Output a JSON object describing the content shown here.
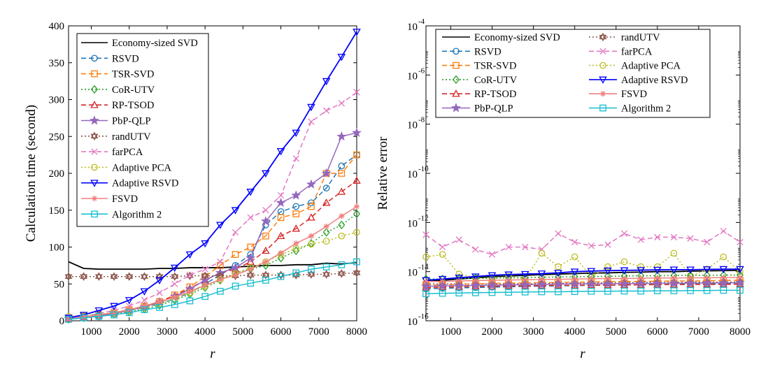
{
  "chart_data": [
    {
      "type": "line",
      "title": "",
      "xlabel": "r",
      "ylabel": "Calculation time (second)",
      "xlim": [
        400,
        8000
      ],
      "ylim": [
        0,
        400
      ],
      "yscale": "linear",
      "xticks": [
        1000,
        2000,
        3000,
        4000,
        5000,
        6000,
        7000,
        8000
      ],
      "xtick_labels": [
        "1000",
        "2000",
        "3000",
        "4000",
        "5000",
        "6000",
        "7000",
        "8000"
      ],
      "yticks": [
        0,
        50,
        100,
        150,
        200,
        250,
        300,
        350,
        400
      ],
      "ytick_labels": [
        "0",
        "50",
        "100",
        "150",
        "200",
        "250",
        "300",
        "350",
        "400"
      ],
      "legend_position": "top-left",
      "x": [
        400,
        800,
        1200,
        1600,
        2000,
        2400,
        2800,
        3200,
        3600,
        4000,
        4400,
        4800,
        5200,
        5600,
        6000,
        6400,
        6800,
        7200,
        7600,
        8000
      ],
      "series": [
        {
          "name": "Economy-sized SVD",
          "color": "#000000",
          "dash": "solid",
          "marker": "none",
          "values": [
            80,
            71,
            70,
            70,
            70,
            70,
            71,
            71,
            72,
            72,
            72,
            73,
            74,
            75,
            75,
            76,
            76,
            78,
            77,
            79
          ]
        },
        {
          "name": "RSVD",
          "color": "#1f77b4",
          "dash": "dashed",
          "marker": "circle",
          "values": [
            3,
            6,
            8,
            11,
            14,
            18,
            23,
            30,
            38,
            50,
            62,
            75,
            90,
            130,
            148,
            155,
            160,
            180,
            210,
            225
          ]
        },
        {
          "name": "TSR-SVD",
          "color": "#ff7f0e",
          "dash": "dashed",
          "marker": "square",
          "values": [
            3,
            6,
            8,
            11,
            15,
            20,
            26,
            35,
            46,
            60,
            75,
            90,
            100,
            115,
            140,
            145,
            155,
            200,
            200,
            225
          ]
        },
        {
          "name": "CoR-UTV",
          "color": "#2ca02c",
          "dash": "dotted",
          "marker": "diamond",
          "values": [
            2,
            4,
            6,
            9,
            12,
            16,
            21,
            28,
            36,
            45,
            55,
            65,
            70,
            75,
            85,
            95,
            105,
            120,
            130,
            145
          ]
        },
        {
          "name": "RP-TSOD",
          "color": "#d62728",
          "dash": "dashed",
          "marker": "triangle-up",
          "values": [
            3,
            5,
            8,
            11,
            15,
            20,
            26,
            34,
            44,
            55,
            65,
            70,
            80,
            95,
            115,
            125,
            140,
            160,
            175,
            190
          ]
        },
        {
          "name": "PbP-QLP",
          "color": "#9467bd",
          "dash": "solid",
          "marker": "star",
          "values": [
            3,
            5,
            7,
            10,
            14,
            19,
            25,
            33,
            43,
            55,
            65,
            72,
            85,
            135,
            160,
            170,
            185,
            200,
            250,
            255
          ]
        },
        {
          "name": "randUTV",
          "color": "#8c564b",
          "dash": "dotted",
          "marker": "hexagram",
          "values": [
            60,
            60,
            60,
            60,
            60,
            60,
            60,
            60,
            61,
            61,
            61,
            61,
            62,
            62,
            62,
            62,
            63,
            63,
            64,
            65
          ]
        },
        {
          "name": "farPCA",
          "color": "#e377c2",
          "dash": "dashed",
          "marker": "x",
          "values": [
            3,
            6,
            10,
            14,
            20,
            28,
            38,
            50,
            62,
            70,
            80,
            120,
            140,
            150,
            170,
            220,
            270,
            285,
            295,
            310
          ]
        },
        {
          "name": "Adaptive PCA",
          "color": "#bcbd22",
          "dash": "dotted",
          "marker": "circle",
          "values": [
            6,
            7,
            9,
            11,
            14,
            18,
            23,
            30,
            38,
            47,
            56,
            64,
            72,
            80,
            90,
            98,
            104,
            108,
            115,
            120
          ]
        },
        {
          "name": "Adaptive RSVD",
          "color": "#0000ff",
          "dash": "solid",
          "marker": "triangle-down",
          "values": [
            4,
            8,
            14,
            20,
            28,
            40,
            55,
            72,
            90,
            105,
            130,
            150,
            175,
            200,
            230,
            255,
            290,
            325,
            358,
            392
          ]
        },
        {
          "name": "FSVD",
          "color": "#f08080",
          "dash": "solid",
          "marker": "asterisk",
          "values": [
            2,
            5,
            8,
            11,
            15,
            20,
            26,
            32,
            40,
            48,
            56,
            62,
            70,
            80,
            92,
            105,
            115,
            128,
            142,
            155
          ]
        },
        {
          "name": "Algorithm 2",
          "color": "#17becf",
          "dash": "solid",
          "marker": "square",
          "values": [
            2,
            4,
            6,
            8,
            11,
            15,
            18,
            22,
            27,
            33,
            40,
            47,
            51,
            55,
            60,
            65,
            70,
            73,
            76,
            80
          ]
        }
      ]
    },
    {
      "type": "line",
      "title": "",
      "xlabel": "r",
      "ylabel": "Relative error",
      "xlim": [
        400,
        8000
      ],
      "ylim_log10": [
        -16,
        -4
      ],
      "yscale": "log",
      "xticks": [
        1000,
        2000,
        3000,
        4000,
        5000,
        6000,
        7000,
        8000
      ],
      "xtick_labels": [
        "1000",
        "2000",
        "3000",
        "4000",
        "5000",
        "6000",
        "7000",
        "8000"
      ],
      "yticks_log10": [
        -16,
        -14,
        -12,
        -10,
        -8,
        -6,
        -4
      ],
      "ytick_base": "10",
      "ytick_exponents": [
        "-16",
        "-14",
        "-12",
        "-10",
        "-8",
        "-6",
        "-4"
      ],
      "legend_position": "top",
      "legend_columns": 2,
      "x": [
        400,
        800,
        1200,
        1600,
        2000,
        2400,
        2800,
        3200,
        3600,
        4000,
        4400,
        4800,
        5200,
        5600,
        6000,
        6400,
        6800,
        7200,
        7600,
        8000
      ],
      "series_log10": [
        {
          "name": "Economy-sized SVD",
          "color": "#000000",
          "dash": "solid",
          "marker": "none",
          "values": [
            -14.4,
            -14.35,
            -14.3,
            -14.25,
            -14.2,
            -14.18,
            -14.15,
            -14.12,
            -14.1,
            -14.08,
            -14.06,
            -14.05,
            -14.03,
            -14.02,
            -14.0,
            -14.0,
            -13.98,
            -13.97,
            -13.96,
            -13.95
          ]
        },
        {
          "name": "randUTV",
          "color": "#8c564b",
          "dash": "dotted",
          "marker": "hexagram",
          "values": [
            -14.5,
            -14.5,
            -14.5,
            -14.5,
            -14.5,
            -14.5,
            -14.5,
            -14.48,
            -14.48,
            -14.48,
            -14.46,
            -14.46,
            -14.45,
            -14.45,
            -14.44,
            -14.44,
            -14.43,
            -14.43,
            -14.42,
            -14.42
          ]
        },
        {
          "name": "RSVD",
          "color": "#1f77b4",
          "dash": "dashed",
          "marker": "circle",
          "values": [
            -14.7,
            -14.68,
            -14.66,
            -14.65,
            -14.63,
            -14.62,
            -14.6,
            -14.59,
            -14.58,
            -14.57,
            -14.56,
            -14.55,
            -14.54,
            -14.53,
            -14.52,
            -14.52,
            -14.51,
            -14.5,
            -14.5,
            -14.5
          ]
        },
        {
          "name": "farPCA",
          "color": "#e377c2",
          "dash": "dashed",
          "marker": "x",
          "values": [
            -12.5,
            -13.0,
            -12.7,
            -13.1,
            -13.3,
            -13.0,
            -13.0,
            -13.1,
            -12.45,
            -12.8,
            -12.95,
            -12.9,
            -12.45,
            -12.7,
            -12.6,
            -12.6,
            -12.65,
            -12.8,
            -12.35,
            -12.8
          ]
        },
        {
          "name": "TSR-SVD",
          "color": "#ff7f0e",
          "dash": "dashed",
          "marker": "square",
          "values": [
            -14.55,
            -14.55,
            -14.52,
            -14.5,
            -14.48,
            -14.47,
            -14.46,
            -14.45,
            -14.44,
            -14.43,
            -14.42,
            -14.41,
            -14.4,
            -14.4,
            -14.39,
            -14.38,
            -14.38,
            -14.37,
            -14.36,
            -14.35
          ]
        },
        {
          "name": "Adaptive PCA",
          "color": "#bcbd22",
          "dash": "dotted",
          "marker": "circle",
          "values": [
            -13.4,
            -13.3,
            -14.1,
            -14.25,
            -14.3,
            -14.2,
            -14.3,
            -13.25,
            -13.8,
            -13.4,
            -14.2,
            -13.8,
            -13.6,
            -13.8,
            -13.8,
            -13.25,
            -14.2,
            -13.9,
            -13.4,
            -14.0
          ]
        },
        {
          "name": "CoR-UTV",
          "color": "#2ca02c",
          "dash": "dotted",
          "marker": "diamond",
          "values": [
            -14.3,
            -14.3,
            -14.28,
            -14.27,
            -14.26,
            -14.25,
            -14.24,
            -14.23,
            -14.22,
            -14.21,
            -14.2,
            -14.19,
            -14.18,
            -14.17,
            -14.17,
            -14.16,
            -14.15,
            -14.15,
            -14.14,
            -14.14
          ]
        },
        {
          "name": "Adaptive RSVD",
          "color": "#0000ff",
          "dash": "solid",
          "marker": "triangle-down",
          "values": [
            -14.35,
            -14.3,
            -14.25,
            -14.2,
            -14.15,
            -14.12,
            -14.1,
            -14.08,
            -14.05,
            -14.0,
            -13.98,
            -13.96,
            -13.95,
            -13.94,
            -13.93,
            -13.92,
            -13.92,
            -13.91,
            -13.9,
            -13.9
          ]
        },
        {
          "name": "RP-TSOD",
          "color": "#d62728",
          "dash": "dashed",
          "marker": "triangle-up",
          "values": [
            -14.65,
            -14.63,
            -14.62,
            -14.6,
            -14.6,
            -14.58,
            -14.58,
            -14.57,
            -14.56,
            -14.56,
            -14.55,
            -14.55,
            -14.54,
            -14.54,
            -14.53,
            -14.53,
            -14.52,
            -14.52,
            -14.52,
            -14.51
          ]
        },
        {
          "name": "FSVD",
          "color": "#f08080",
          "dash": "solid",
          "marker": "asterisk",
          "values": [
            -14.4,
            -14.4,
            -14.38,
            -14.36,
            -14.35,
            -14.34,
            -14.33,
            -14.32,
            -14.31,
            -14.3,
            -14.29,
            -14.28,
            -14.28,
            -14.27,
            -14.26,
            -14.26,
            -14.25,
            -14.25,
            -14.24,
            -14.24
          ]
        },
        {
          "name": "PbP-QLP",
          "color": "#9467bd",
          "dash": "solid",
          "marker": "star",
          "values": [
            -14.6,
            -14.58,
            -14.57,
            -14.56,
            -14.55,
            -14.54,
            -14.53,
            -14.52,
            -14.51,
            -14.5,
            -14.5,
            -14.49,
            -14.49,
            -14.48,
            -14.48,
            -14.47,
            -14.47,
            -14.46,
            -14.46,
            -14.45
          ]
        },
        {
          "name": "Algorithm 2",
          "color": "#17becf",
          "dash": "solid",
          "marker": "square",
          "values": [
            -14.9,
            -14.88,
            -14.87,
            -14.86,
            -14.85,
            -14.84,
            -14.83,
            -14.82,
            -14.82,
            -14.81,
            -14.8,
            -14.8,
            -14.79,
            -14.79,
            -14.78,
            -14.78,
            -14.77,
            -14.77,
            -14.76,
            -14.76
          ]
        }
      ]
    }
  ]
}
